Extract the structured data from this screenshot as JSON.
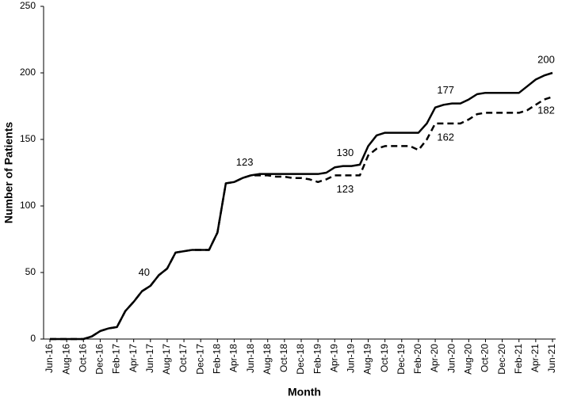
{
  "chart_data": {
    "type": "line",
    "x_label": "Month",
    "y_label": "Number of Patients",
    "categories": [
      "Jun-16",
      null,
      "Aug-16",
      null,
      "Oct-16",
      null,
      "Dec-16",
      null,
      "Feb-17",
      null,
      "Apr-17",
      null,
      "Jun-17",
      null,
      "Aug-17",
      null,
      "Oct-17",
      null,
      "Dec-17",
      null,
      "Feb-18",
      null,
      "Apr-18",
      null,
      "Jun-18",
      null,
      "Aug-18",
      null,
      "Oct-18",
      null,
      "Dec-18",
      null,
      "Feb-19",
      null,
      "Apr-19",
      null,
      "Jun-19",
      null,
      "Aug-19",
      null,
      "Oct-19",
      null,
      "Dec-19",
      null,
      "Feb-20",
      null,
      "Apr-20",
      null,
      "Jun-20",
      null,
      "Aug-20",
      null,
      "Oct-20",
      null,
      "Dec-20",
      null,
      "Feb-21",
      null,
      "Apr-21",
      null,
      "Jun-21"
    ],
    "series": [
      {
        "color": "#000000",
        "dash": false,
        "label_indices": [
          12,
          24,
          36,
          48,
          60
        ],
        "values": [
          0,
          0,
          0,
          0,
          0,
          2,
          6,
          8,
          9,
          21,
          28,
          36,
          40,
          48,
          53,
          65,
          66,
          67,
          67,
          67,
          80,
          117,
          118,
          121,
          123,
          124,
          124,
          124,
          124,
          124,
          124,
          124,
          124,
          125,
          129,
          130,
          130,
          131,
          145,
          153,
          155,
          155,
          155,
          155,
          155,
          162,
          174,
          176,
          177,
          177,
          180,
          184,
          185,
          185,
          185,
          185,
          185,
          190,
          195,
          198,
          200
        ]
      },
      {
        "color": "#000000",
        "dash": true,
        "label_indices": [
          36,
          48,
          60
        ],
        "values": [
          0,
          0,
          0,
          0,
          0,
          2,
          6,
          8,
          9,
          21,
          28,
          36,
          40,
          48,
          53,
          65,
          66,
          67,
          67,
          67,
          80,
          117,
          118,
          121,
          123,
          123,
          123,
          122,
          122,
          121,
          121,
          120,
          118,
          120,
          123,
          123,
          123,
          123,
          138,
          143,
          145,
          145,
          145,
          145,
          142,
          150,
          162,
          162,
          162,
          162,
          165,
          169,
          170,
          170,
          170,
          170,
          170,
          172,
          176,
          180,
          182
        ]
      }
    ],
    "ylim": [
      0,
      250
    ],
    "yticks": [
      0,
      50,
      100,
      150,
      200,
      250
    ],
    "grid": false
  }
}
